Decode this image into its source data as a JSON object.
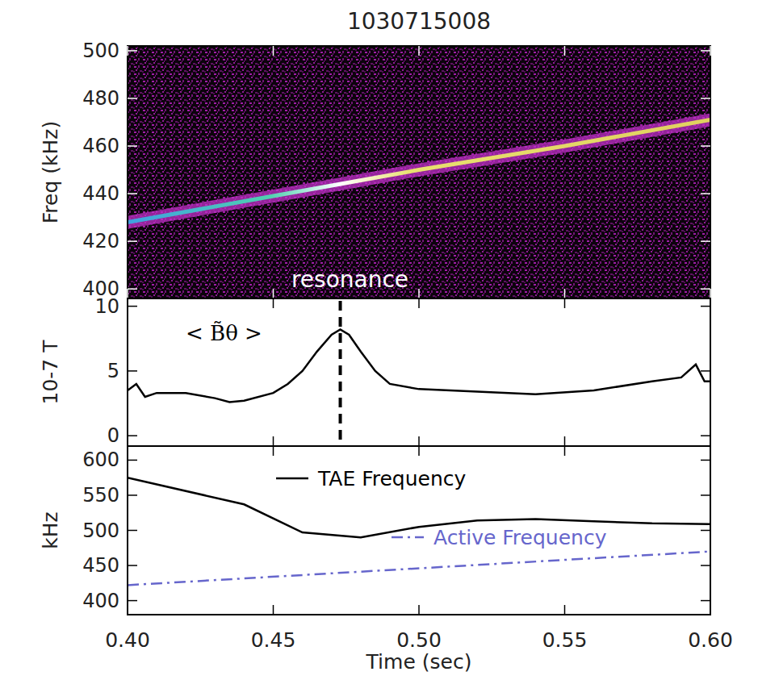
{
  "chart_data": [
    {
      "type": "spectrogram",
      "title": "1030715008",
      "y_label": "Freq (kHz)",
      "x": [
        0.4,
        0.45,
        0.5,
        0.55,
        0.6
      ],
      "values": [
        428,
        439,
        450,
        460,
        471
      ],
      "xlim": [
        0.4,
        0.6
      ],
      "ylim": [
        396,
        502
      ],
      "xticks": [
        0.4,
        0.45,
        0.5,
        0.55,
        0.6
      ],
      "yticks": [
        400,
        420,
        440,
        460,
        480,
        500
      ],
      "tick_labels": "y",
      "annotations": [
        {
          "text": "resonance",
          "x": 0.473
        }
      ]
    },
    {
      "type": "line",
      "y_label": "10-7 T",
      "x": [
        0.4,
        0.403,
        0.406,
        0.41,
        0.42,
        0.43,
        0.435,
        0.44,
        0.45,
        0.455,
        0.46,
        0.465,
        0.47,
        0.473,
        0.476,
        0.48,
        0.485,
        0.49,
        0.5,
        0.52,
        0.54,
        0.56,
        0.58,
        0.59,
        0.595,
        0.598,
        0.6
      ],
      "series": [
        {
          "name": "< B̃θ >",
          "color": "#000000",
          "values": [
            3.5,
            4.0,
            3.0,
            3.3,
            3.3,
            2.9,
            2.6,
            2.7,
            3.3,
            4.0,
            5.0,
            6.5,
            7.8,
            8.2,
            7.8,
            6.5,
            5.0,
            4.0,
            3.6,
            3.4,
            3.2,
            3.5,
            4.2,
            4.5,
            5.5,
            4.2,
            4.2
          ]
        }
      ],
      "xlim": [
        0.4,
        0.6
      ],
      "ylim": [
        -0.8,
        10.6
      ],
      "xticks": [
        0.4,
        0.45,
        0.5,
        0.55,
        0.6
      ],
      "yticks": [
        0,
        5,
        10
      ],
      "tick_labels": "y",
      "legend": "upper left",
      "annotations": [
        {
          "x": 0.473,
          "line_style": "dashed"
        }
      ]
    },
    {
      "type": "line",
      "y_label": "kHz",
      "x_label": "Time (sec)",
      "series": [
        {
          "name": "TAE Frequency",
          "color": "#000000",
          "line_style": "solid",
          "x": [
            0.4,
            0.44,
            0.46,
            0.48,
            0.5,
            0.52,
            0.54,
            0.56,
            0.58,
            0.6
          ],
          "values": [
            575,
            537,
            497,
            490,
            505,
            514,
            516,
            513,
            510,
            509
          ]
        },
        {
          "name": "Active Frequency",
          "color": "#6666cc",
          "line_style": "dashdot",
          "x": [
            0.4,
            0.6
          ],
          "values": [
            422,
            470
          ]
        }
      ],
      "xlim": [
        0.4,
        0.6
      ],
      "ylim": [
        380,
        620
      ],
      "xticks": [
        {
          "value": 0.4,
          "label": "0.40"
        },
        {
          "value": 0.45,
          "label": "0.45"
        },
        {
          "value": 0.5,
          "label": "0.50"
        },
        {
          "value": 0.55,
          "label": "0.55"
        },
        {
          "value": 0.6,
          "label": "0.60"
        }
      ],
      "yticks": [
        400,
        450,
        500,
        550,
        600
      ],
      "legend": "upper right"
    }
  ]
}
